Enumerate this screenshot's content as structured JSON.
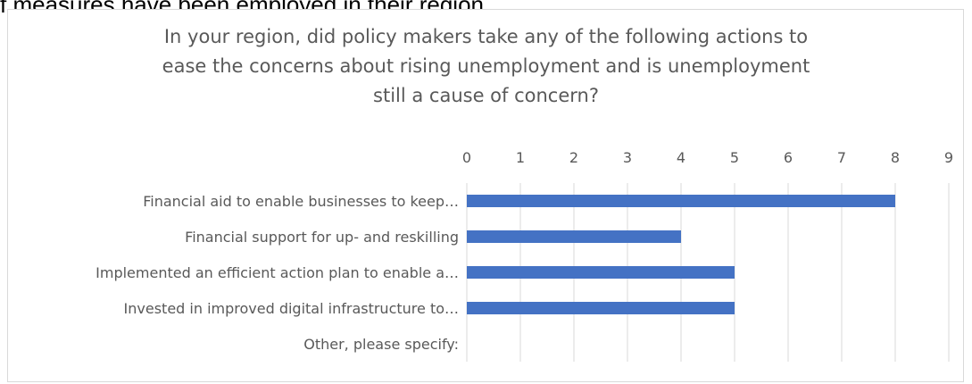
{
  "page": {
    "top_text": "f measures have been employed in their region."
  },
  "chart_data": {
    "type": "bar",
    "orientation": "horizontal",
    "title_lines": [
      "In your region, did policy makers take any of the following actions  to",
      "ease the concerns about rising unemployment and is unemployment",
      "still a cause of concern?"
    ],
    "categories": [
      "Financial aid to enable businesses to keep…",
      "Financial support for up- and reskilling",
      "Implemented an efficient action plan to enable a…",
      "Invested in improved digital infrastructure to…",
      "Other, please specify:"
    ],
    "values": [
      8,
      4,
      5,
      5,
      0
    ],
    "xlim": [
      0,
      9
    ],
    "xticks": [
      "0",
      "1",
      "2",
      "3",
      "4",
      "5",
      "6",
      "7",
      "8",
      "9"
    ],
    "axis_position": "top",
    "grid": true,
    "bar_color": "#4472c4",
    "grid_color": "#d9d9d9",
    "text_color": "#595959"
  }
}
